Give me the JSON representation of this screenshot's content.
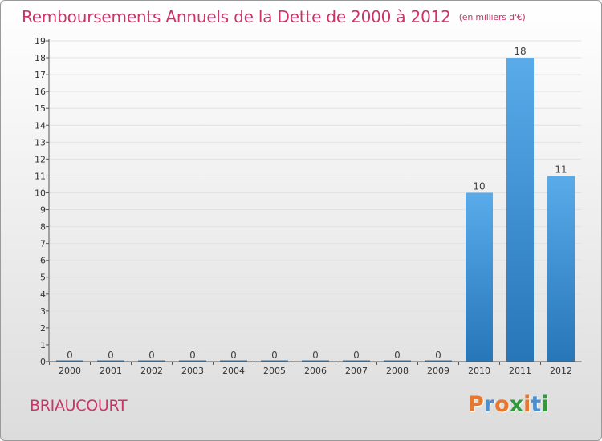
{
  "header": {
    "title": "Remboursements Annuels de la Dette de 2000 à 2012",
    "subtitle": "(en milliers d'€)"
  },
  "footer": {
    "commune": "BRIAUCOURT",
    "logo_text": "Proxiti",
    "logo_colors": [
      "#e8772e",
      "#4a8fd0",
      "#e8772e",
      "#2e9a3c",
      "#e8772e",
      "#4a8fd0",
      "#2e9a3c"
    ]
  },
  "chart_data": {
    "type": "bar",
    "categories": [
      "2000",
      "2001",
      "2002",
      "2003",
      "2004",
      "2005",
      "2006",
      "2007",
      "2008",
      "2009",
      "2010",
      "2011",
      "2012"
    ],
    "values": [
      0,
      0,
      0,
      0,
      0,
      0,
      0,
      0,
      0,
      0,
      10,
      18,
      11
    ],
    "data_labels": [
      "0",
      "0",
      "0",
      "0",
      "0",
      "0",
      "0",
      "0",
      "0",
      "0",
      "10",
      "18",
      "11"
    ],
    "y_ticks": [
      "0",
      "1",
      "2",
      "3",
      "4",
      "5",
      "6",
      "7",
      "8",
      "9",
      "10",
      "11",
      "12",
      "13",
      "14",
      "15",
      "16",
      "17",
      "18",
      "19"
    ],
    "ylim": [
      0,
      19
    ],
    "bar_color_top": "#5aabea",
    "bar_color_bottom": "#2676b8"
  }
}
